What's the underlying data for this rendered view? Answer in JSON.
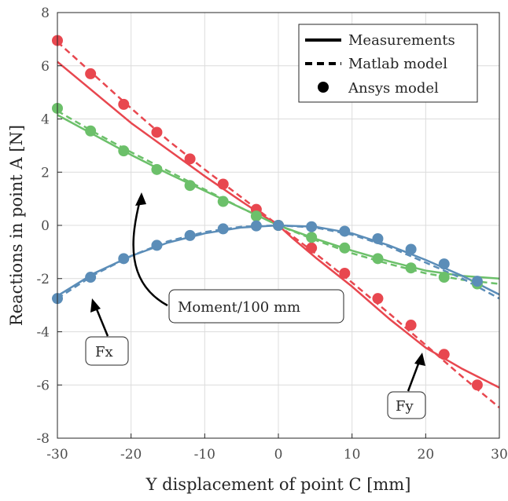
{
  "chart_data": {
    "type": "line",
    "xlabel": "Y displacement of point C [mm]",
    "ylabel": "Reactions in point A [N]",
    "xlim": [
      -30,
      30
    ],
    "ylim": [
      -8,
      8
    ],
    "xticks": [
      -30,
      -20,
      -10,
      0,
      10,
      20,
      30
    ],
    "yticks": [
      -8,
      -6,
      -4,
      -2,
      0,
      2,
      4,
      6,
      8
    ],
    "xtick_labels": [
      "-30",
      "-20",
      "-10",
      "0",
      "10",
      "20",
      "30"
    ],
    "ytick_labels": [
      "-8",
      "-6",
      "-4",
      "-2",
      "0",
      "2",
      "4",
      "6",
      "8"
    ],
    "grid": true,
    "legend": {
      "placement": "top-right",
      "entries": [
        "Measurements",
        "Matlab model",
        "Ansys model"
      ]
    },
    "colors": {
      "Fy": "#e8474f",
      "Moment": "#6cc06a",
      "Fx": "#5b8db8"
    },
    "annotations": [
      {
        "label": "Moment/100 mm",
        "curve": "Moment"
      },
      {
        "label": "Fx",
        "curve": "Fx"
      },
      {
        "label": "Fy",
        "curve": "Fy"
      }
    ],
    "series": [
      {
        "curve": "Fy",
        "style": "measurement",
        "x": [
          -30,
          -25,
          -20,
          -15,
          -10,
          -5,
          -2,
          0,
          2,
          5,
          10,
          15,
          20,
          25,
          30
        ],
        "y": [
          6.15,
          5.0,
          3.85,
          2.85,
          1.85,
          0.9,
          0.35,
          0.0,
          -0.5,
          -1.2,
          -2.3,
          -3.5,
          -4.6,
          -5.4,
          -6.1
        ]
      },
      {
        "curve": "Fy",
        "style": "matlab",
        "x": [
          -30,
          -25,
          -20,
          -15,
          -10,
          -5,
          0,
          5,
          10,
          15,
          20,
          25,
          30
        ],
        "y": [
          6.9,
          5.65,
          4.4,
          3.2,
          2.1,
          1.05,
          0.0,
          -1.05,
          -2.15,
          -3.3,
          -4.5,
          -5.7,
          -6.85
        ]
      },
      {
        "curve": "Fy",
        "style": "ansys",
        "x": [
          -30,
          -25.5,
          -21,
          -16.5,
          -12,
          -7.5,
          -3,
          0,
          4.5,
          9,
          13.5,
          18,
          22.5,
          27
        ],
        "y": [
          6.95,
          5.7,
          4.55,
          3.5,
          2.5,
          1.55,
          0.6,
          0.0,
          -0.85,
          -1.8,
          -2.75,
          -3.75,
          -4.85,
          -6.0
        ]
      },
      {
        "curve": "Moment",
        "style": "measurement",
        "x": [
          -30,
          -25,
          -20,
          -15,
          -10,
          -5,
          0,
          5,
          10,
          15,
          20,
          25,
          30
        ],
        "y": [
          4.15,
          3.4,
          2.65,
          1.95,
          1.3,
          0.65,
          0.0,
          -0.5,
          -0.95,
          -1.35,
          -1.7,
          -1.9,
          -2.0
        ]
      },
      {
        "curve": "Moment",
        "style": "matlab",
        "x": [
          -30,
          -25,
          -20,
          -15,
          -10,
          -5,
          0,
          5,
          10,
          15,
          20,
          25,
          30
        ],
        "y": [
          4.3,
          3.5,
          2.75,
          2.05,
          1.35,
          0.65,
          0.0,
          -0.55,
          -1.05,
          -1.45,
          -1.8,
          -2.05,
          -2.2
        ]
      },
      {
        "curve": "Moment",
        "style": "ansys",
        "x": [
          -30,
          -25.5,
          -21,
          -16.5,
          -12,
          -7.5,
          -3,
          0,
          4.5,
          9,
          13.5,
          18,
          22.5,
          27
        ],
        "y": [
          4.4,
          3.55,
          2.8,
          2.1,
          1.5,
          0.9,
          0.35,
          0.0,
          -0.45,
          -0.85,
          -1.25,
          -1.6,
          -1.95,
          -2.2
        ]
      },
      {
        "curve": "Fx",
        "style": "measurement",
        "x": [
          -30,
          -25,
          -20,
          -15,
          -10,
          -5,
          0,
          5,
          10,
          15,
          20,
          25,
          30
        ],
        "y": [
          -2.65,
          -1.8,
          -1.15,
          -0.65,
          -0.3,
          -0.08,
          0.0,
          -0.05,
          -0.3,
          -0.75,
          -1.3,
          -1.9,
          -2.6
        ]
      },
      {
        "curve": "Fx",
        "style": "matlab",
        "x": [
          -30,
          -25,
          -20,
          -15,
          -10,
          -5,
          0,
          5,
          10,
          15,
          20,
          25,
          30
        ],
        "y": [
          -2.75,
          -1.85,
          -1.15,
          -0.6,
          -0.25,
          -0.05,
          0.0,
          -0.08,
          -0.35,
          -0.8,
          -1.4,
          -2.0,
          -2.75
        ]
      },
      {
        "curve": "Fx",
        "style": "ansys",
        "x": [
          -30,
          -25.5,
          -21,
          -16.5,
          -12,
          -7.5,
          -3,
          0,
          4.5,
          9,
          13.5,
          18,
          22.5,
          27
        ],
        "y": [
          -2.75,
          -1.95,
          -1.25,
          -0.75,
          -0.38,
          -0.13,
          -0.02,
          0.0,
          -0.05,
          -0.22,
          -0.5,
          -0.9,
          -1.45,
          -2.1
        ]
      }
    ]
  }
}
